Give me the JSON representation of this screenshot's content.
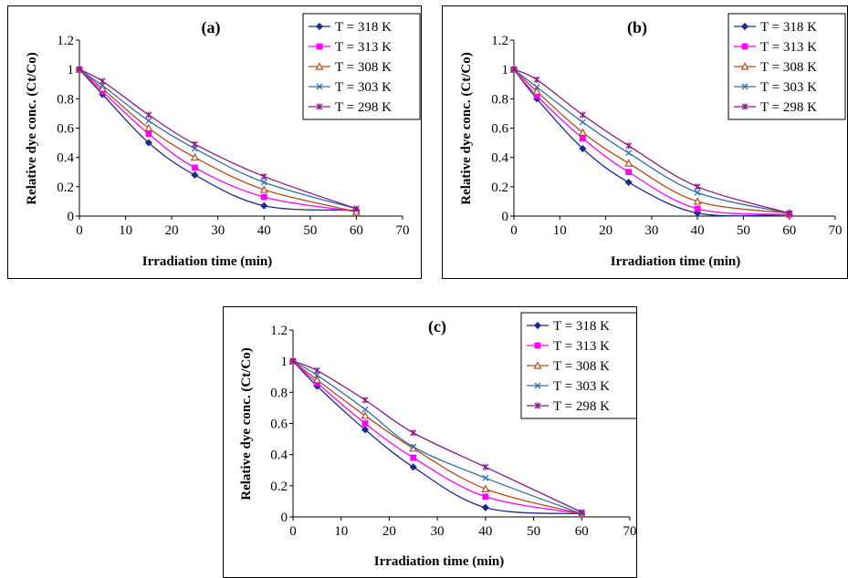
{
  "chart_data": [
    {
      "type": "line",
      "title": "(a)",
      "xlabel": "Irradiation time (min)",
      "ylabel": "Relative dye conc. (Ct/Co)",
      "xlim": [
        0,
        70
      ],
      "ylim": [
        0,
        1.2
      ],
      "x_ticks": [
        "0",
        "10",
        "20",
        "30",
        "40",
        "50",
        "60",
        "70"
      ],
      "y_ticks": [
        "0",
        "0.2",
        "0.4",
        "0.6",
        "0.8",
        "1",
        "1.2"
      ],
      "grid": false,
      "legend_position": "top-right",
      "x": [
        0,
        5,
        15,
        25,
        40,
        60
      ],
      "series": [
        {
          "name": "T = 318 K",
          "color": "#1f2a8c",
          "marker": "diamond",
          "values": [
            1.0,
            0.83,
            0.5,
            0.28,
            0.07,
            0.04
          ]
        },
        {
          "name": "T = 313 K",
          "color": "#ff00ff",
          "marker": "square",
          "values": [
            1.0,
            0.85,
            0.56,
            0.33,
            0.13,
            0.03
          ]
        },
        {
          "name": "T = 308 K",
          "color": "#b84a1a",
          "marker": "triangle",
          "values": [
            1.0,
            0.87,
            0.6,
            0.4,
            0.18,
            0.03
          ]
        },
        {
          "name": "T = 303 K",
          "color": "#2f6fae",
          "marker": "x",
          "values": [
            1.0,
            0.89,
            0.65,
            0.46,
            0.23,
            0.05
          ]
        },
        {
          "name": "T = 298 K",
          "color": "#8b1a8b",
          "marker": "star",
          "values": [
            1.0,
            0.92,
            0.69,
            0.49,
            0.27,
            0.05
          ]
        }
      ]
    },
    {
      "type": "line",
      "title": "(b)",
      "xlabel": "Irradiation time (min)",
      "ylabel": "Relative dye conc. (Ct/Co)",
      "xlim": [
        0,
        70
      ],
      "ylim": [
        0,
        1.2
      ],
      "x_ticks": [
        "0",
        "10",
        "20",
        "30",
        "40",
        "50",
        "60",
        "70"
      ],
      "y_ticks": [
        "0",
        "0.2",
        "0.4",
        "0.6",
        "0.8",
        "1",
        "1.2"
      ],
      "grid": false,
      "legend_position": "top-right",
      "x": [
        0,
        5,
        15,
        25,
        40,
        60
      ],
      "series": [
        {
          "name": "T = 318 K",
          "color": "#1f2a8c",
          "marker": "diamond",
          "values": [
            1.0,
            0.8,
            0.46,
            0.23,
            0.02,
            0.01
          ]
        },
        {
          "name": "T = 313 K",
          "color": "#ff00ff",
          "marker": "square",
          "values": [
            1.0,
            0.82,
            0.53,
            0.3,
            0.05,
            0.01
          ]
        },
        {
          "name": "T = 308 K",
          "color": "#b84a1a",
          "marker": "triangle",
          "values": [
            1.0,
            0.85,
            0.57,
            0.36,
            0.1,
            0.02
          ]
        },
        {
          "name": "T = 303 K",
          "color": "#2f6fae",
          "marker": "x",
          "values": [
            1.0,
            0.88,
            0.64,
            0.43,
            0.16,
            0.02
          ]
        },
        {
          "name": "T = 298 K",
          "color": "#8b1a8b",
          "marker": "star",
          "values": [
            1.0,
            0.93,
            0.69,
            0.48,
            0.2,
            0.02
          ]
        }
      ]
    },
    {
      "type": "line",
      "title": "(c)",
      "xlabel": "Irradiation time (min)",
      "ylabel": "Relative dye conc. (Ct/Co)",
      "xlim": [
        0,
        70
      ],
      "ylim": [
        0,
        1.2
      ],
      "x_ticks": [
        "0",
        "10",
        "20",
        "30",
        "40",
        "50",
        "60",
        "70"
      ],
      "y_ticks": [
        "0",
        "0.2",
        "0.4",
        "0.6",
        "0.8",
        "1",
        "1.2"
      ],
      "grid": false,
      "legend_position": "top-right",
      "x": [
        0,
        5,
        15,
        25,
        40,
        60
      ],
      "series": [
        {
          "name": "T = 318 K",
          "color": "#1f2a8c",
          "marker": "diamond",
          "values": [
            1.0,
            0.84,
            0.56,
            0.32,
            0.06,
            0.02
          ]
        },
        {
          "name": "T = 313 K",
          "color": "#ff00ff",
          "marker": "square",
          "values": [
            1.0,
            0.86,
            0.6,
            0.38,
            0.13,
            0.02
          ]
        },
        {
          "name": "T = 308 K",
          "color": "#b84a1a",
          "marker": "triangle",
          "values": [
            1.0,
            0.88,
            0.65,
            0.44,
            0.18,
            0.02
          ]
        },
        {
          "name": "T = 303 K",
          "color": "#2f6fae",
          "marker": "x",
          "values": [
            1.0,
            0.91,
            0.69,
            0.45,
            0.25,
            0.02
          ]
        },
        {
          "name": "T = 298 K",
          "color": "#8b1a8b",
          "marker": "star",
          "values": [
            1.0,
            0.94,
            0.75,
            0.54,
            0.32,
            0.03
          ]
        }
      ]
    }
  ]
}
